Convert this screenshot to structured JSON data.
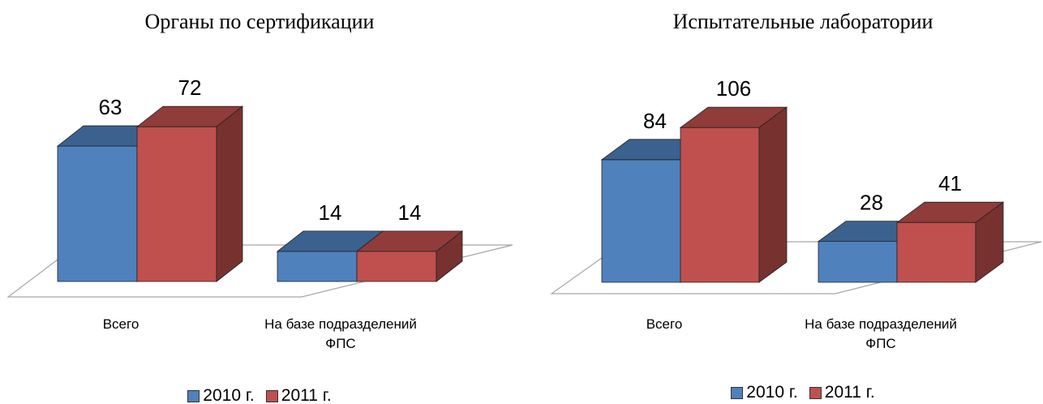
{
  "chart_data": [
    {
      "type": "bar3d",
      "title": "Органы по сертификации",
      "categories": [
        "Всего",
        "На базе подразделений ФПС"
      ],
      "series": [
        {
          "name": "2010 г.",
          "color": "#4f81bd",
          "values": [
            63,
            14
          ]
        },
        {
          "name": "2011 г.",
          "color": "#c0504d",
          "values": [
            72,
            14
          ]
        }
      ]
    },
    {
      "type": "bar3d",
      "title": "Испытательные лаборатории",
      "categories": [
        "Всего",
        "На базе подразделений ФПС"
      ],
      "series": [
        {
          "name": "2010 г.",
          "color": "#4f81bd",
          "values": [
            84,
            28
          ]
        },
        {
          "name": "2011 г.",
          "color": "#c0504d",
          "values": [
            106,
            41
          ]
        }
      ]
    }
  ]
}
